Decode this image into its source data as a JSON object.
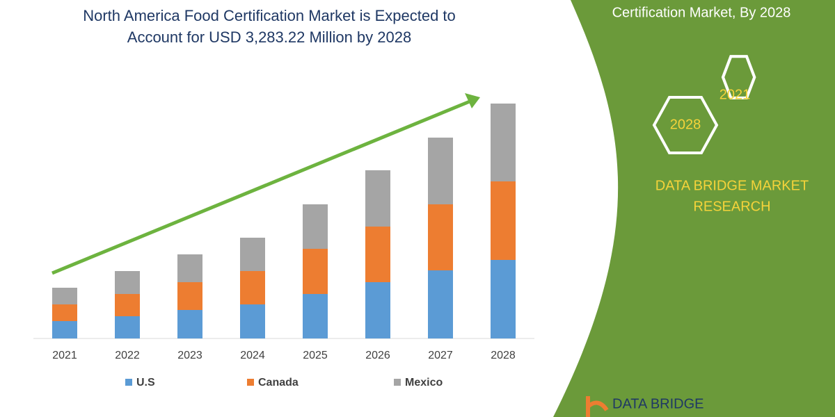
{
  "chart_data": {
    "type": "stacked_bar",
    "title": [
      "North America Food Certification Market is Expected to",
      "Account for USD 3,283.22 Million by 2028"
    ],
    "categories": [
      "2021",
      "2022",
      "2023",
      "2024",
      "2025",
      "2026",
      "2027",
      "2028"
    ],
    "series": [
      {
        "name": "U.S",
        "color": "#5b9bd5",
        "values": [
          25,
          32,
          41,
          49,
          64,
          81,
          98,
          113
        ]
      },
      {
        "name": "Canada",
        "color": "#ed7d31",
        "values": [
          24,
          32,
          40,
          48,
          65,
          80,
          95,
          113
        ]
      },
      {
        "name": "Mexico",
        "color": "#a5a5a5",
        "values": [
          24,
          33,
          40,
          48,
          64,
          81,
          96,
          112
        ]
      }
    ],
    "ylim": [
      0,
      340
    ]
  },
  "panel": {
    "heading": "Certification Market, By 2028",
    "hexagons": [
      "2021",
      "2028"
    ],
    "brand": [
      "DATA BRIDGE MARKET",
      "RESEARCH"
    ],
    "logo": "DATA BRIDGE"
  }
}
